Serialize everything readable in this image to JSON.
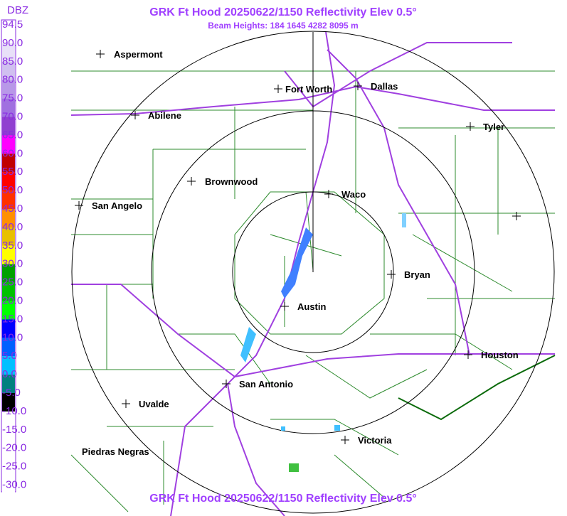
{
  "header": {
    "title": "GRK Ft Hood 20250622/1150 Reflectivity Elev 0.5°",
    "subtitle": "Beam Heights: 184 1645 4282 8095 m",
    "footer": "GRK Ft Hood 20250622/1150 Reflectivity Elev 0.5°"
  },
  "colorbar": {
    "unit": "DBZ",
    "labels": [
      "94.5",
      "90.0",
      "85.0",
      "80.0",
      "75.0",
      "70.0",
      "65.0",
      "60.0",
      "55.0",
      "50.0",
      "45.0",
      "40.0",
      "35.0",
      "30.0",
      "25.0",
      "20.0",
      "15.0",
      "10.0",
      "5.0",
      "0.0",
      "-5.0",
      "-10.0",
      "-15.0",
      "-20.0",
      "-25.0",
      "-30.0"
    ]
  },
  "cities": [
    "Aspermont",
    "Fort Worth",
    "Dallas",
    "Abilene",
    "Tyler",
    "Brownwood",
    "Waco",
    "San Angelo",
    "Bryan",
    "Austin",
    "Houston",
    "San Antonio",
    "Uvalde",
    "Piedras Negras",
    "Victoria"
  ]
}
